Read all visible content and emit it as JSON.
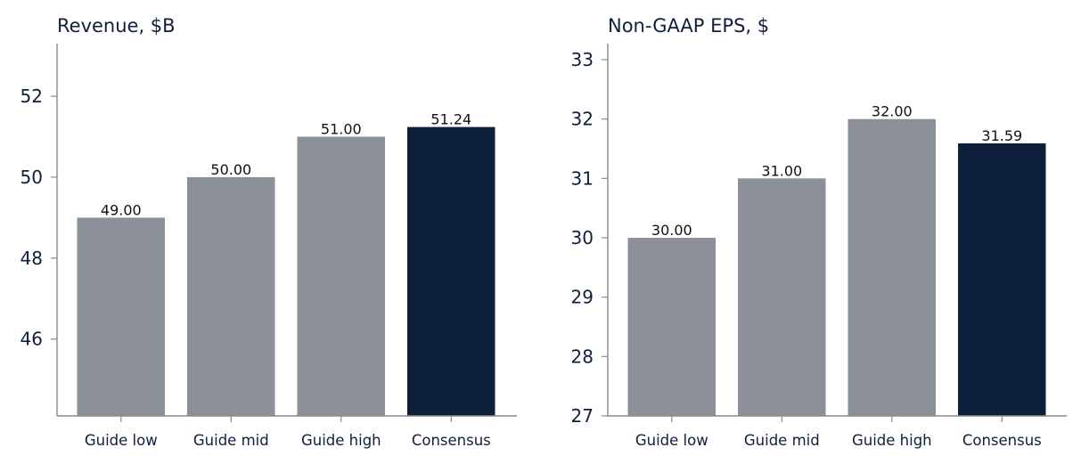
{
  "colors": {
    "guide": "#8c9099",
    "consensus": "#0d1f3a",
    "axis": "#888888",
    "text": "#0f1f3d"
  },
  "chart_data": [
    {
      "type": "bar",
      "title": "Revenue, $B",
      "categories": [
        "Guide low",
        "Guide mid",
        "Guide high",
        "Consensus"
      ],
      "values": [
        49.0,
        50.0,
        51.0,
        51.24
      ],
      "value_labels": [
        "49.00",
        "50.00",
        "51.00",
        "51.24"
      ],
      "bar_color_keys": [
        "guide",
        "guide",
        "guide",
        "consensus"
      ],
      "ylim": [
        44.1,
        53.3
      ],
      "yticks": [
        46,
        48,
        50,
        52
      ],
      "ytick_labels": [
        "46",
        "48",
        "50",
        "52"
      ],
      "grid": false,
      "legend": false
    },
    {
      "type": "bar",
      "title": "Non-GAAP EPS, $",
      "categories": [
        "Guide low",
        "Guide mid",
        "Guide high",
        "Consensus"
      ],
      "values": [
        30.0,
        31.0,
        32.0,
        31.59
      ],
      "value_labels": [
        "30.00",
        "31.00",
        "32.00",
        "31.59"
      ],
      "bar_color_keys": [
        "guide",
        "guide",
        "guide",
        "consensus"
      ],
      "ylim": [
        27.0,
        33.27
      ],
      "yticks": [
        27,
        28,
        29,
        30,
        31,
        32,
        33
      ],
      "ytick_labels": [
        "27",
        "28",
        "29",
        "30",
        "31",
        "32",
        "33"
      ],
      "grid": false,
      "legend": false
    }
  ]
}
